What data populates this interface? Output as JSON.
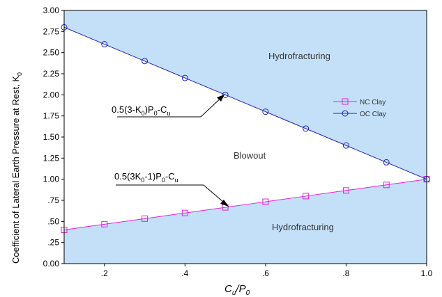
{
  "chart_data": {
    "type": "line",
    "xlabel_main": "C",
    "xlabel_sub1": "u",
    "xlabel_slash": "/P",
    "xlabel_sub2": "0",
    "ylabel": "Coefficient of Lateral Earth Pressure at Rest, K",
    "ylabel_sub": "0",
    "xlim": [
      0.1,
      1.0
    ],
    "ylim": [
      0.0,
      3.0
    ],
    "x_ticks": [
      0.2,
      0.4,
      0.6,
      0.8,
      1.0
    ],
    "x_tick_labels": [
      ".2",
      ".4",
      ".6",
      ".8",
      "1.0"
    ],
    "y_ticks": [
      0,
      0.25,
      0.5,
      0.75,
      1.0,
      1.25,
      1.5,
      1.75,
      2.0,
      2.25,
      2.5,
      2.75,
      3.0
    ],
    "y_tick_labels": [
      "0.00",
      ".25",
      ".50",
      ".75",
      "1.00",
      "1.25",
      "1.50",
      "1.75",
      "2.00",
      "2.25",
      "2.50",
      "2.75",
      "3.00"
    ],
    "series": [
      {
        "name": "NC Clay",
        "color": "#e020e0",
        "marker": "square",
        "x": [
          0.1,
          0.2,
          0.3,
          0.4,
          0.5,
          0.6,
          0.7,
          0.8,
          0.9,
          1.0
        ],
        "y": [
          0.4,
          0.467,
          0.533,
          0.6,
          0.667,
          0.733,
          0.8,
          0.867,
          0.933,
          1.0
        ]
      },
      {
        "name": "OC Clay",
        "color": "#2020c0",
        "marker": "circle",
        "x": [
          0.1,
          0.2,
          0.3,
          0.4,
          0.5,
          0.6,
          0.7,
          0.8,
          0.9,
          1.0
        ],
        "y": [
          2.8,
          2.6,
          2.4,
          2.2,
          2.0,
          1.8,
          1.6,
          1.4,
          1.2,
          1.0
        ]
      }
    ],
    "region_labels": {
      "top": "Hydrofracturing",
      "middle": "Blowout",
      "bottom": "Hydrofracturing"
    },
    "annotations": {
      "upper": {
        "p1": "0.5(3-K",
        "s1": "0",
        "p2": ")P",
        "s2": "0",
        "p3": "-C",
        "s3": "u"
      },
      "lower": {
        "p1": "0.5(3K",
        "s1": "0",
        "p2": "-1)P",
        "s2": "0",
        "p3": "-C",
        "s3": "u"
      }
    },
    "legend_position": "right-middle",
    "colors": {
      "shaded_region": "#c4e0f8",
      "unshaded_region": "#ffffff"
    },
    "grid": false
  }
}
